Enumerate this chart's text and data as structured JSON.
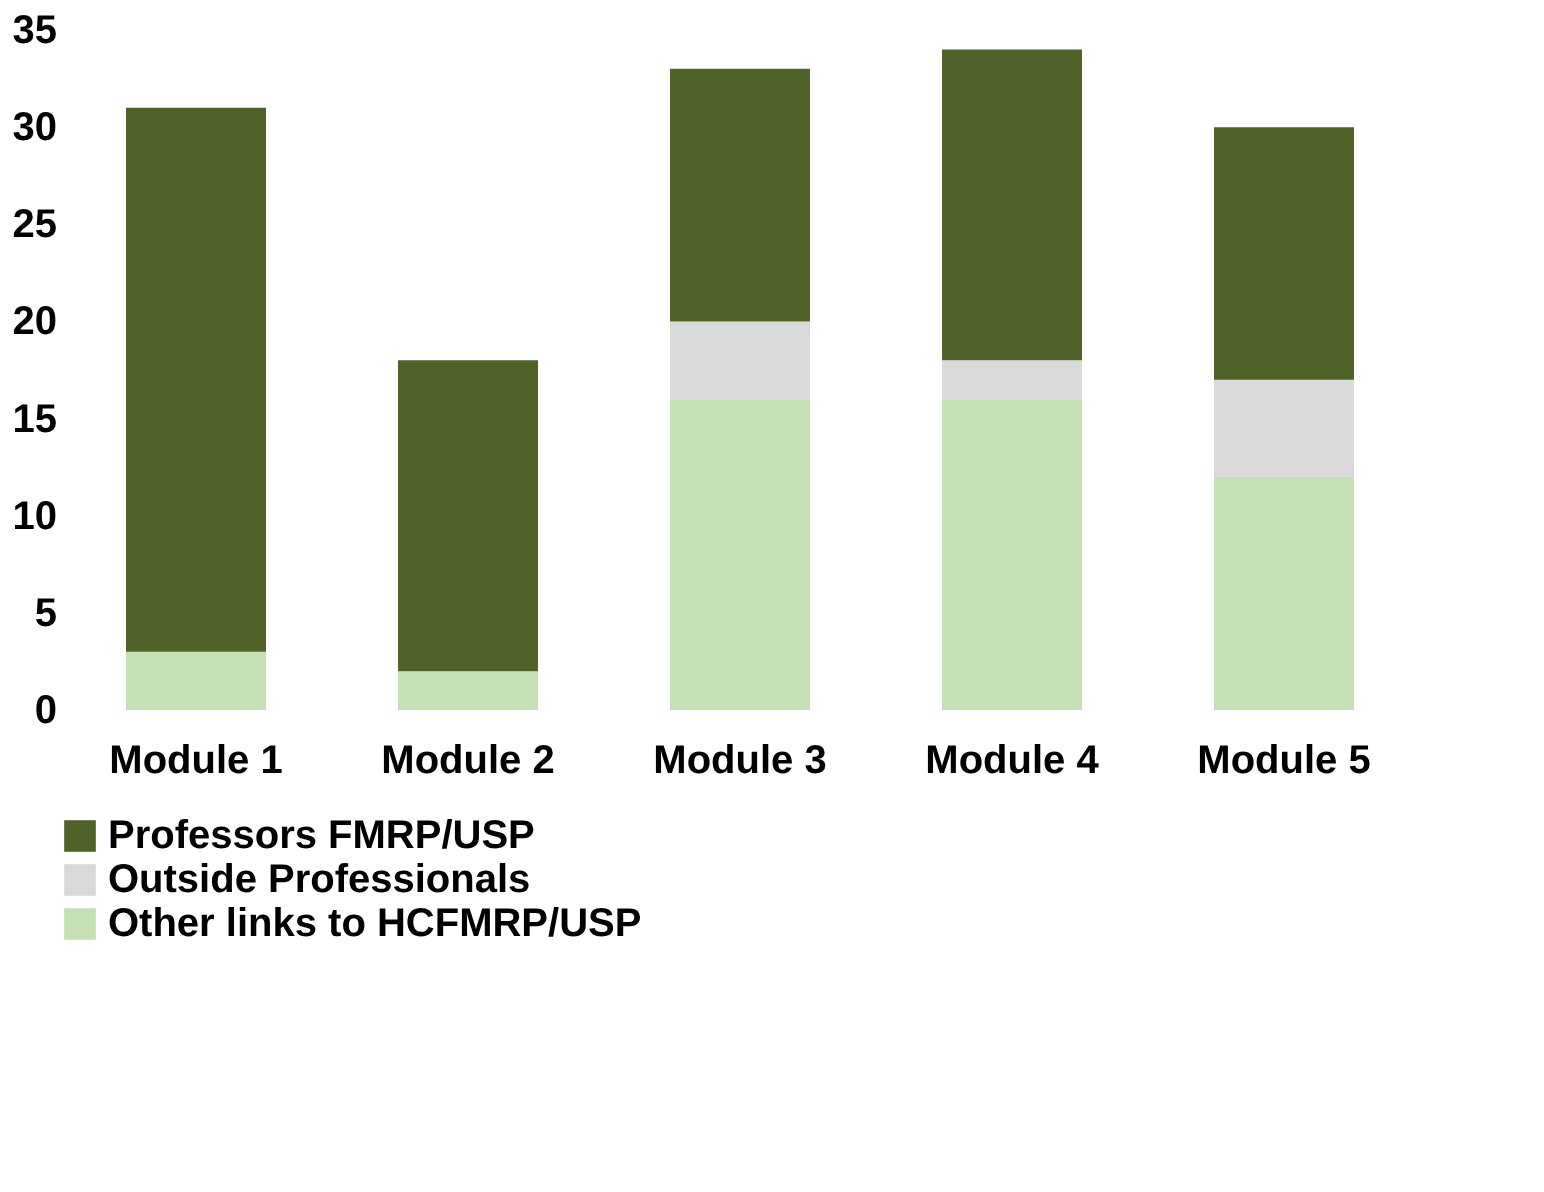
{
  "chart_data": {
    "type": "bar",
    "stacked": true,
    "categories": [
      "Module 1",
      "Module 2",
      "Module 3",
      "Module 4",
      "Module 5"
    ],
    "series": [
      {
        "name": "Other links to HCFMRP/USP",
        "color": "#c5e0b4",
        "values": [
          3,
          2,
          16,
          16,
          12
        ]
      },
      {
        "name": "Outside Professionals",
        "color": "#d9d9d9",
        "values": [
          0,
          0,
          4,
          2,
          5
        ]
      },
      {
        "name": "Professors FMRP/USP",
        "color": "#4f6228",
        "values": [
          28,
          16,
          13,
          16,
          13
        ]
      }
    ],
    "ylim": [
      0,
      35
    ],
    "yticks": [
      0,
      5,
      10,
      15,
      20,
      25,
      30,
      35
    ],
    "grid": false,
    "legend": "bottom"
  }
}
